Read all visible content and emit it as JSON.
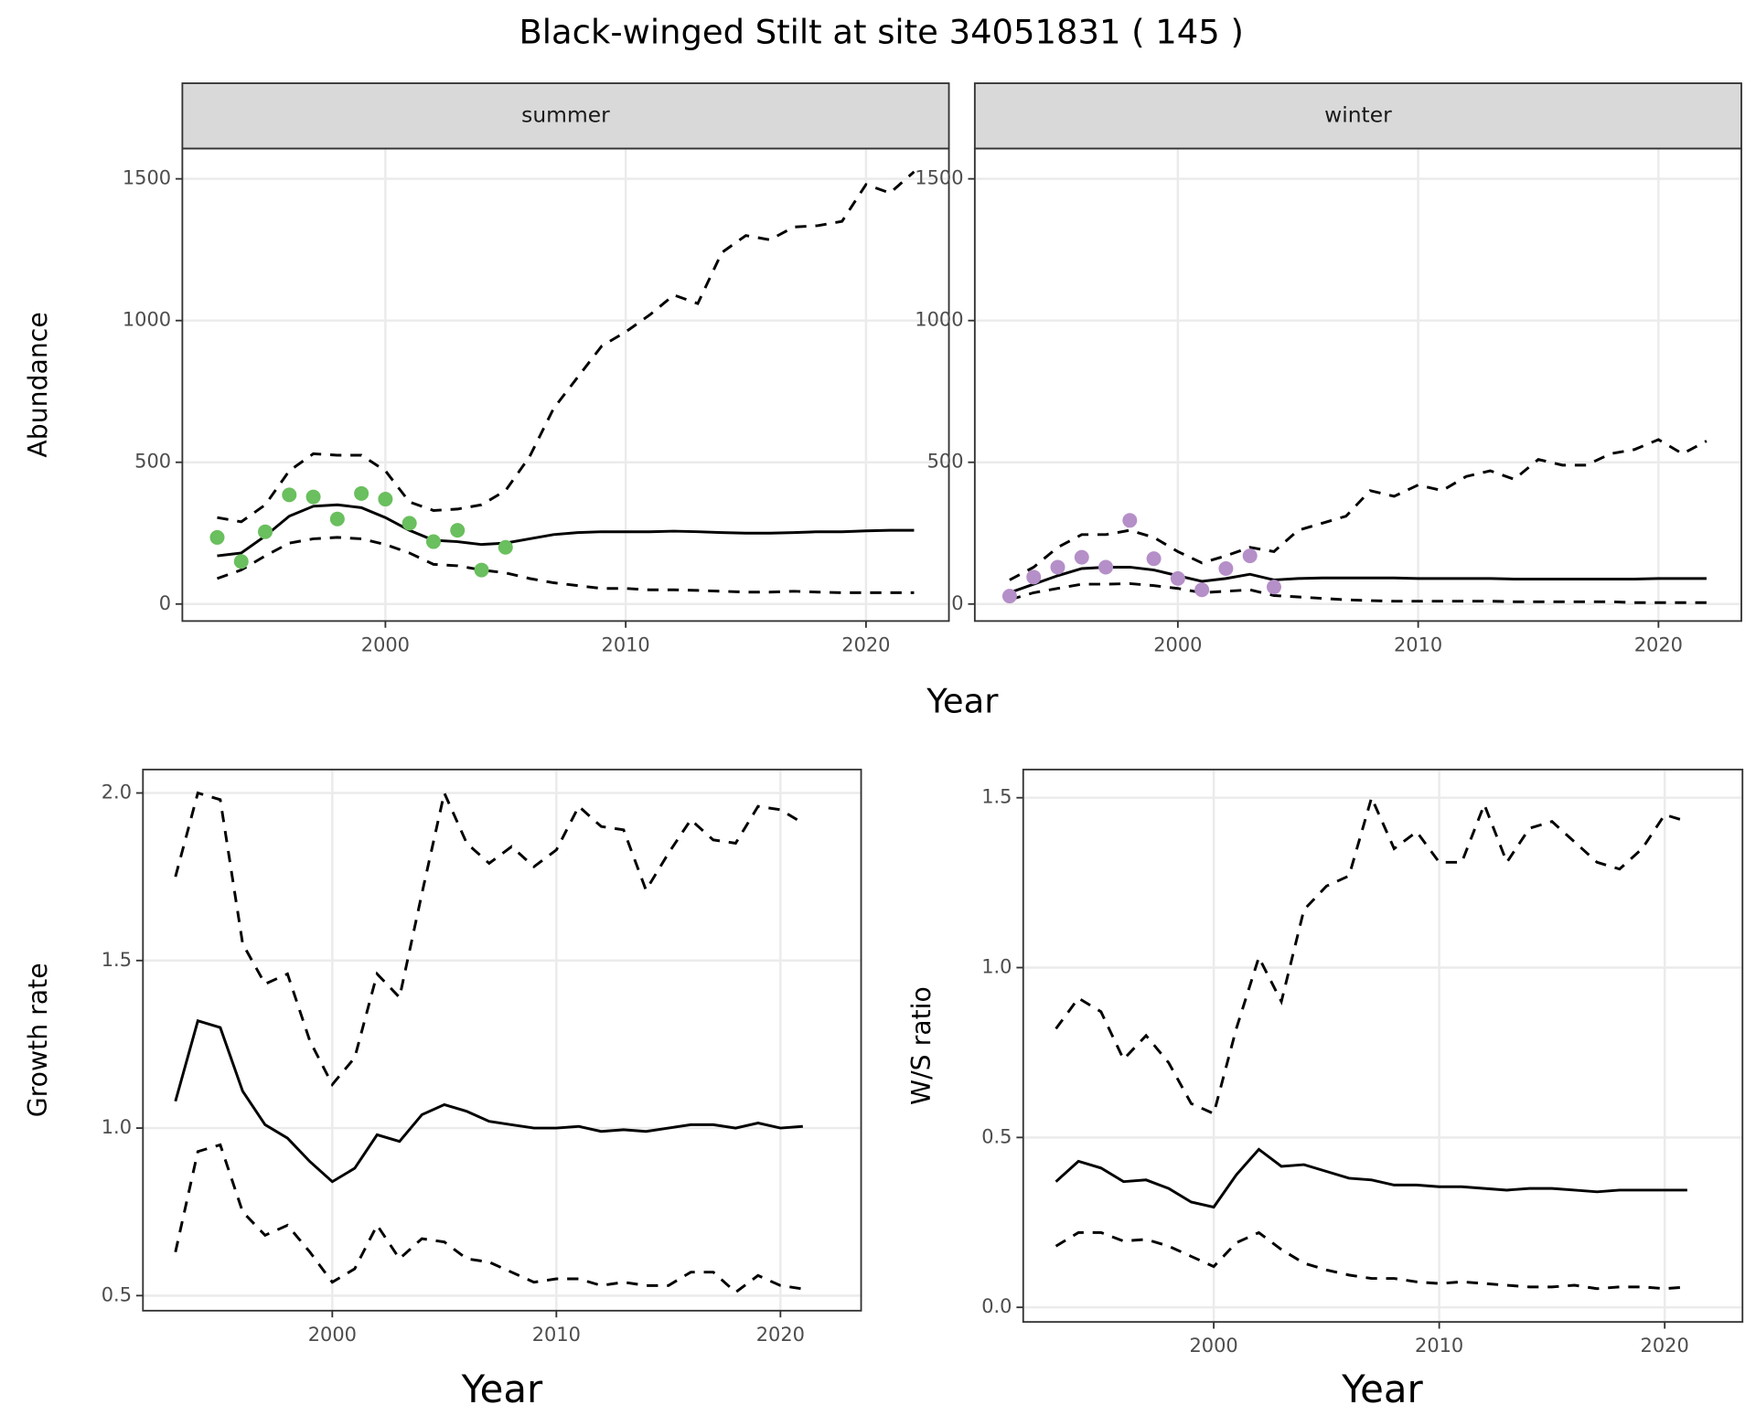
{
  "title": "Black-winged Stilt at site 34051831 ( 145 )",
  "chart_data": [
    {
      "type": "line",
      "facet": "summer",
      "ylabel": "Abundance",
      "xlabel": "Year",
      "x": [
        1993,
        1994,
        1995,
        1996,
        1997,
        1998,
        1999,
        2000,
        2001,
        2002,
        2003,
        2004,
        2005,
        2006,
        2007,
        2008,
        2009,
        2010,
        2011,
        2012,
        2013,
        2014,
        2015,
        2016,
        2017,
        2018,
        2019,
        2020,
        2021,
        2022
      ],
      "xlim": [
        1991.55,
        2023.45
      ],
      "xticks": [
        2000,
        2010,
        2020
      ],
      "ylim": [
        -60,
        1607
      ],
      "yticks": [
        0,
        500,
        1000,
        1500
      ],
      "grid": true,
      "series": [
        {
          "color": "#000000",
          "dashed": false,
          "values": [
            170,
            180,
            240,
            310,
            345,
            350,
            340,
            305,
            260,
            225,
            220,
            210,
            215,
            230,
            245,
            252,
            255,
            255,
            255,
            257,
            255,
            252,
            250,
            250,
            252,
            255,
            255,
            258,
            260,
            260
          ]
        },
        {
          "color": "#000000",
          "dashed": true,
          "values": [
            305,
            290,
            350,
            470,
            530,
            525,
            525,
            470,
            360,
            330,
            335,
            350,
            400,
            520,
            690,
            800,
            910,
            960,
            1020,
            1090,
            1060,
            1240,
            1300,
            1285,
            1330,
            1335,
            1350,
            1480,
            1450,
            1525
          ]
        },
        {
          "color": "#000000",
          "dashed": true,
          "values": [
            90,
            120,
            170,
            215,
            230,
            235,
            230,
            210,
            180,
            140,
            135,
            120,
            110,
            90,
            75,
            65,
            55,
            55,
            50,
            50,
            48,
            45,
            42,
            42,
            45,
            42,
            40,
            40,
            40,
            40
          ]
        },
        {
          "color": "#6abf5e",
          "marker": "point",
          "values": [
            235,
            150,
            255,
            385,
            378,
            300,
            390,
            370,
            285,
            220,
            260,
            120,
            200,
            null,
            null,
            null,
            null,
            null,
            null,
            null,
            null,
            null,
            null,
            null,
            null,
            null,
            null,
            null,
            null,
            null
          ]
        }
      ]
    },
    {
      "type": "line",
      "facet": "winter",
      "x": [
        1993,
        1994,
        1995,
        1996,
        1997,
        1998,
        1999,
        2000,
        2001,
        2002,
        2003,
        2004,
        2005,
        2006,
        2007,
        2008,
        2009,
        2010,
        2011,
        2012,
        2013,
        2014,
        2015,
        2016,
        2017,
        2018,
        2019,
        2020,
        2021,
        2022
      ],
      "xlim": [
        1991.55,
        2023.45
      ],
      "xticks": [
        2000,
        2010,
        2020
      ],
      "ylim": [
        -60,
        1607
      ],
      "yticks": [
        0,
        500,
        1000,
        1500
      ],
      "grid": true,
      "series": [
        {
          "color": "#000000",
          "dashed": false,
          "values": [
            40,
            70,
            100,
            125,
            130,
            130,
            120,
            100,
            80,
            90,
            105,
            85,
            90,
            92,
            92,
            92,
            92,
            90,
            90,
            90,
            90,
            88,
            88,
            88,
            88,
            88,
            88,
            90,
            90,
            90
          ]
        },
        {
          "color": "#000000",
          "dashed": true,
          "values": [
            85,
            130,
            200,
            245,
            245,
            260,
            235,
            185,
            145,
            170,
            200,
            185,
            260,
            285,
            310,
            400,
            380,
            420,
            400,
            450,
            470,
            440,
            510,
            490,
            490,
            530,
            545,
            580,
            530,
            575
          ]
        },
        {
          "color": "#000000",
          "dashed": true,
          "values": [
            15,
            40,
            55,
            70,
            70,
            72,
            65,
            55,
            40,
            45,
            50,
            30,
            25,
            20,
            15,
            12,
            10,
            10,
            10,
            10,
            10,
            8,
            8,
            8,
            8,
            8,
            5,
            5,
            5,
            5
          ]
        },
        {
          "color": "#b58fc8",
          "marker": "point",
          "values": [
            28,
            95,
            130,
            165,
            130,
            295,
            160,
            90,
            50,
            125,
            170,
            60,
            null,
            null,
            null,
            null,
            null,
            null,
            null,
            null,
            null,
            null,
            null,
            null,
            null,
            null,
            null,
            null,
            null,
            null
          ]
        }
      ]
    },
    {
      "type": "line",
      "ylabel": "Growth rate",
      "xlabel": "Year",
      "x": [
        1993,
        1994,
        1995,
        1996,
        1997,
        1998,
        1999,
        2000,
        2001,
        2002,
        2003,
        2004,
        2005,
        2006,
        2007,
        2008,
        2009,
        2010,
        2011,
        2012,
        2013,
        2014,
        2015,
        2016,
        2017,
        2018,
        2019,
        2020,
        2021
      ],
      "xlim": [
        1991.55,
        2023.6
      ],
      "xticks": [
        2000,
        2010,
        2020
      ],
      "ylim": [
        0.455,
        2.07
      ],
      "yticks": [
        0.5,
        {
          "value": 1,
          "label": "1.0"
        },
        1.5,
        {
          "value": 2,
          "label": "2.0"
        }
      ],
      "grid": true,
      "series": [
        {
          "color": "#000000",
          "dashed": false,
          "values": [
            1.08,
            1.32,
            1.3,
            1.11,
            1.01,
            0.97,
            0.9,
            0.84,
            0.88,
            0.98,
            0.96,
            1.04,
            1.07,
            1.05,
            1.02,
            1.01,
            1.0,
            1.0,
            1.005,
            0.99,
            0.995,
            0.99,
            1.0,
            1.01,
            1.01,
            1.0,
            1.015,
            1.0,
            1.005
          ]
        },
        {
          "color": "#000000",
          "dashed": true,
          "values": [
            1.75,
            2.0,
            1.98,
            1.55,
            1.43,
            1.46,
            1.26,
            1.13,
            1.21,
            1.46,
            1.39,
            1.7,
            2.0,
            1.85,
            1.79,
            1.84,
            1.78,
            1.83,
            1.96,
            1.9,
            1.89,
            1.71,
            1.82,
            1.92,
            1.86,
            1.85,
            1.96,
            1.95,
            1.91
          ]
        },
        {
          "color": "#000000",
          "dashed": true,
          "values": [
            0.63,
            0.93,
            0.95,
            0.75,
            0.68,
            0.71,
            0.63,
            0.54,
            0.58,
            0.71,
            0.61,
            0.67,
            0.66,
            0.61,
            0.6,
            0.57,
            0.54,
            0.55,
            0.55,
            0.53,
            0.54,
            0.53,
            0.53,
            0.57,
            0.57,
            0.51,
            0.56,
            0.53,
            0.52
          ]
        }
      ]
    },
    {
      "type": "line",
      "ylabel": "W/S ratio",
      "xlabel": "Year",
      "x": [
        1993,
        1994,
        1995,
        1996,
        1997,
        1998,
        1999,
        2000,
        2001,
        2002,
        2003,
        2004,
        2005,
        2006,
        2007,
        2008,
        2009,
        2010,
        2011,
        2012,
        2013,
        2014,
        2015,
        2016,
        2017,
        2018,
        2019,
        2020,
        2021
      ],
      "xlim": [
        1991.55,
        2023.45
      ],
      "xticks": [
        2000,
        2010,
        2020
      ],
      "ylim": [
        -0.043,
        1.583
      ],
      "yticks": [
        {
          "value": 0,
          "label": "0.0"
        },
        0.5,
        {
          "value": 1,
          "label": "1.0"
        },
        1.5
      ],
      "grid": true,
      "series": [
        {
          "color": "#000000",
          "dashed": false,
          "values": [
            0.37,
            0.43,
            0.41,
            0.37,
            0.375,
            0.35,
            0.31,
            0.295,
            0.39,
            0.465,
            0.415,
            0.42,
            0.4,
            0.38,
            0.375,
            0.36,
            0.36,
            0.355,
            0.355,
            0.35,
            0.345,
            0.35,
            0.35,
            0.345,
            0.34,
            0.345,
            0.345,
            0.345,
            0.345
          ]
        },
        {
          "color": "#000000",
          "dashed": true,
          "values": [
            0.82,
            0.91,
            0.87,
            0.73,
            0.8,
            0.72,
            0.6,
            0.57,
            0.82,
            1.03,
            0.9,
            1.17,
            1.24,
            1.27,
            1.5,
            1.35,
            1.4,
            1.31,
            1.31,
            1.48,
            1.31,
            1.41,
            1.43,
            1.37,
            1.31,
            1.29,
            1.35,
            1.45,
            1.43
          ]
        },
        {
          "color": "#000000",
          "dashed": true,
          "values": [
            0.18,
            0.22,
            0.22,
            0.195,
            0.2,
            0.18,
            0.15,
            0.12,
            0.19,
            0.22,
            0.17,
            0.13,
            0.11,
            0.095,
            0.085,
            0.085,
            0.075,
            0.07,
            0.075,
            0.07,
            0.065,
            0.06,
            0.06,
            0.065,
            0.055,
            0.06,
            0.06,
            0.055,
            0.06
          ]
        }
      ]
    }
  ]
}
